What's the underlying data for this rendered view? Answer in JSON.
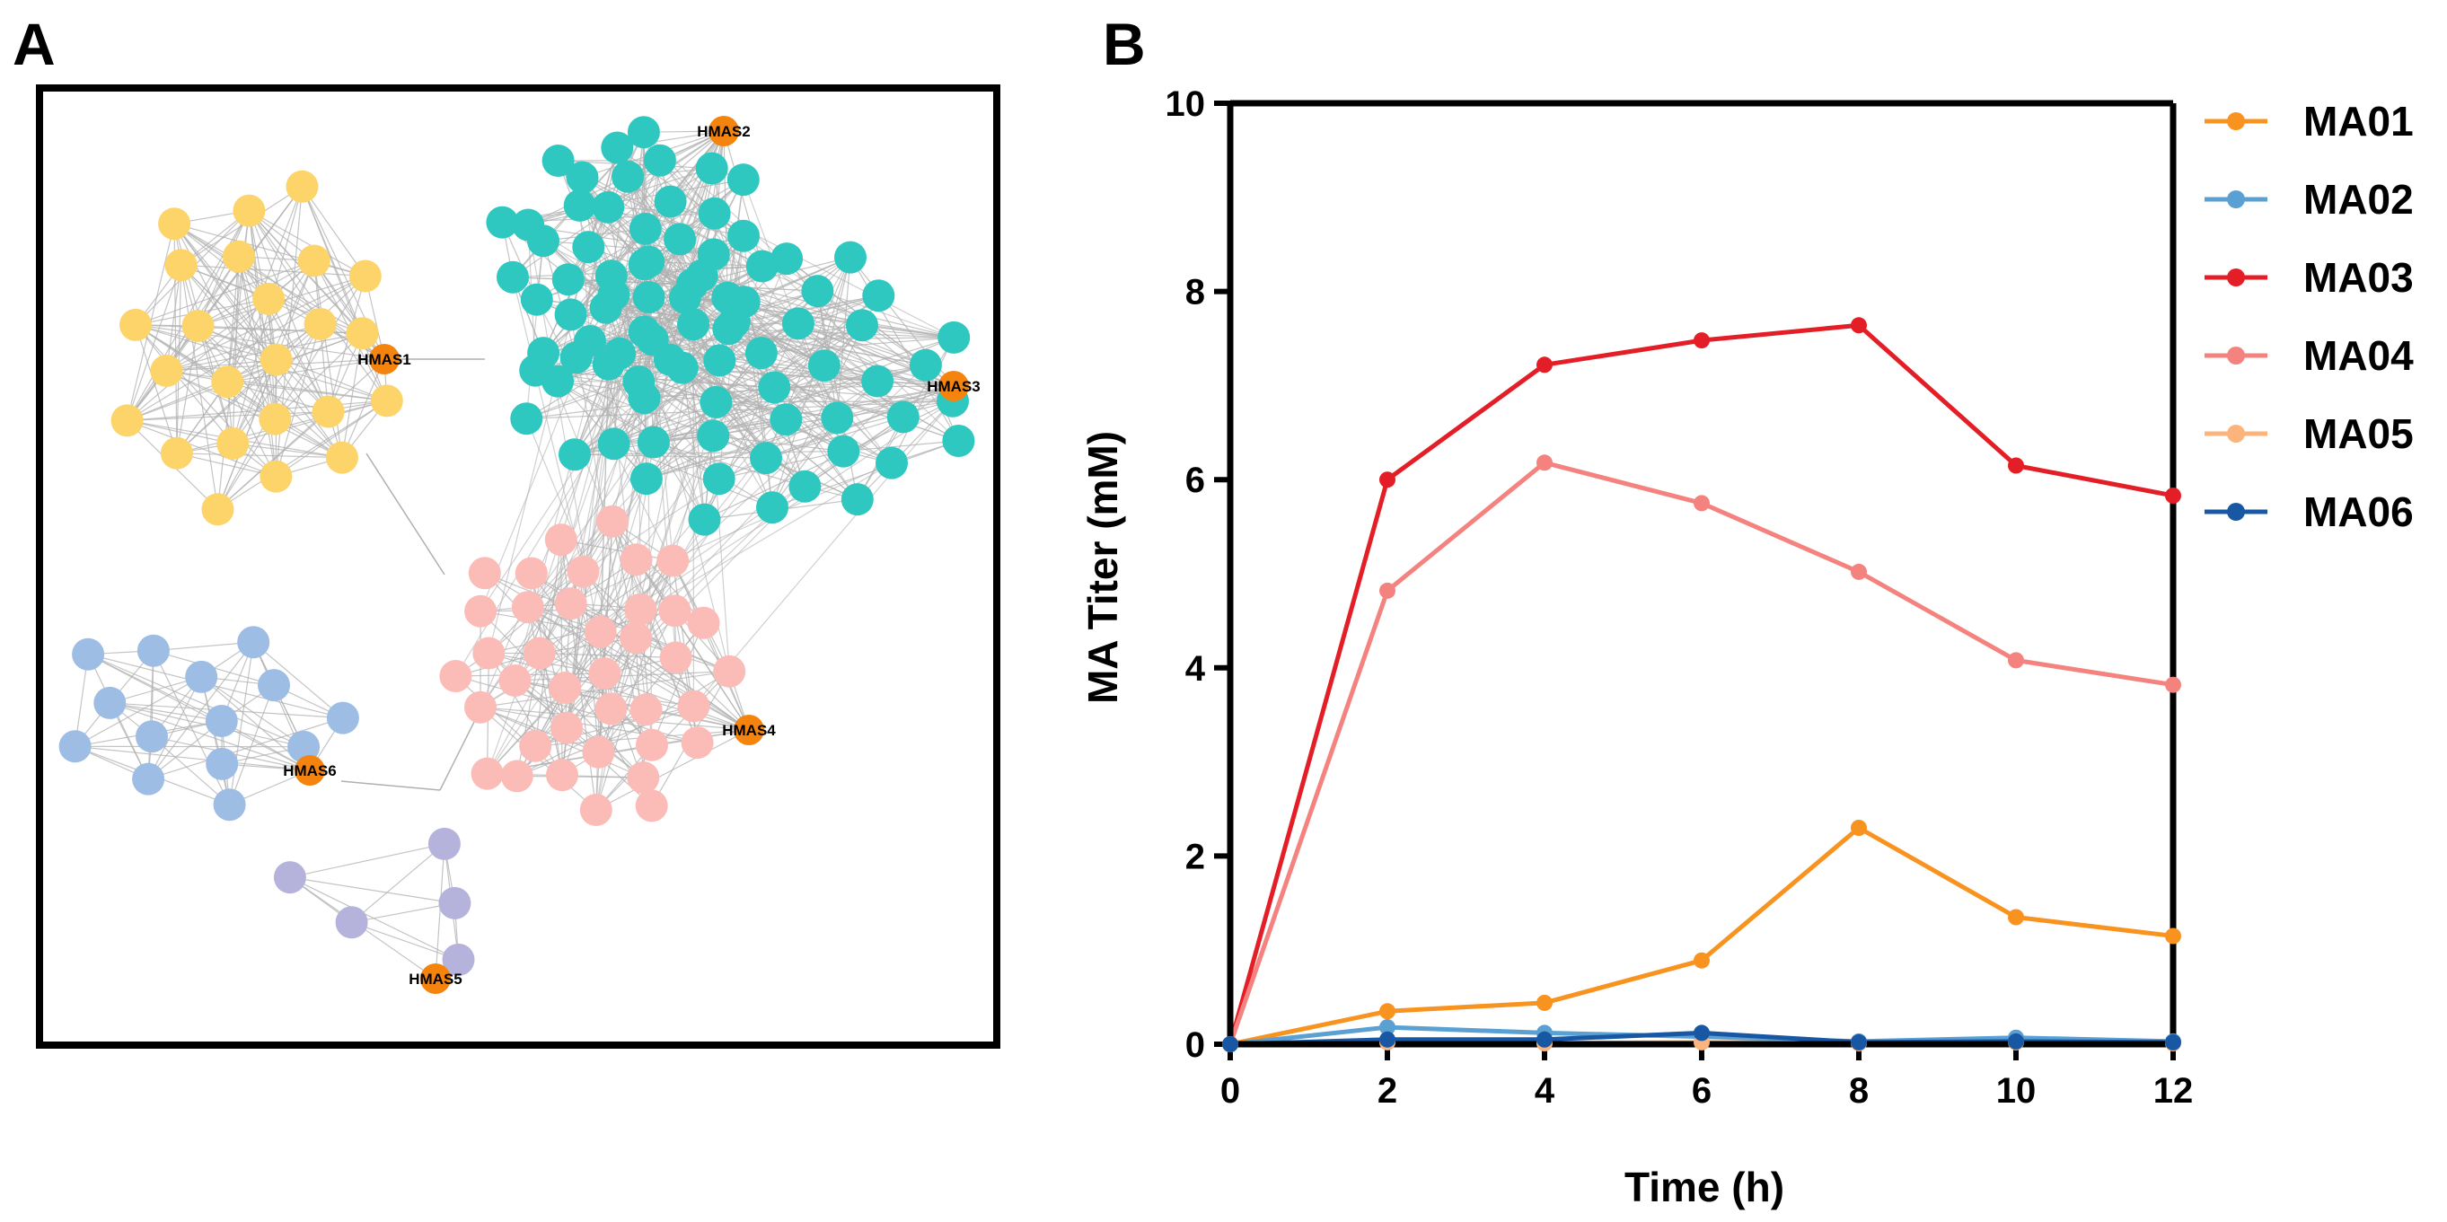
{
  "panel_a": {
    "letter": "A",
    "edge_color": "#b0b0b0",
    "hub_color": "#f5840f",
    "clusters": [
      {
        "name": "HMAS1",
        "color": "#fcd46a",
        "members": 24
      },
      {
        "name": "HMAS2",
        "color": "#2ec8c0",
        "members": 40
      },
      {
        "name": "HMAS3",
        "color": "#2ec8c0",
        "members": 45
      },
      {
        "name": "HMAS4",
        "color": "#fbbcb8",
        "members": 38
      },
      {
        "name": "HMAS5",
        "color": "#b5b3dc",
        "members": 5
      },
      {
        "name": "HMAS6",
        "color": "#9dbde4",
        "members": 14
      }
    ]
  },
  "chart_data": {
    "type": "line",
    "panel_letter": "B",
    "xlabel": "Time (h)",
    "ylabel": "MA Titer (mM)",
    "x": [
      0,
      2,
      4,
      6,
      8,
      10,
      12
    ],
    "xlim": [
      0,
      12
    ],
    "ylim": [
      0,
      10
    ],
    "xticks": [
      0,
      2,
      4,
      6,
      8,
      10,
      12
    ],
    "yticks": [
      0,
      2,
      4,
      6,
      8,
      10
    ],
    "grid": false,
    "legend_position": "right",
    "series": [
      {
        "name": "MA01",
        "color": "#f7931e",
        "values": [
          0,
          0.35,
          0.44,
          0.89,
          2.3,
          1.35,
          1.15
        ]
      },
      {
        "name": "MA02",
        "color": "#5aa0d2",
        "values": [
          0,
          0.18,
          0.12,
          0.08,
          0.03,
          0.07,
          0.03
        ]
      },
      {
        "name": "MA03",
        "color": "#e41e26",
        "values": [
          0,
          6.0,
          7.22,
          7.48,
          7.64,
          6.15,
          5.83
        ]
      },
      {
        "name": "MA04",
        "color": "#f4827e",
        "values": [
          0,
          4.82,
          6.18,
          5.75,
          5.02,
          4.08,
          3.82
        ]
      },
      {
        "name": "MA05",
        "color": "#fbb57c",
        "values": [
          0,
          0.02,
          0.01,
          0.02,
          0.01,
          0.02,
          0.01
        ]
      },
      {
        "name": "MA06",
        "color": "#1857a3",
        "values": [
          0,
          0.05,
          0.05,
          0.12,
          0.02,
          0.03,
          0.02
        ]
      }
    ]
  }
}
